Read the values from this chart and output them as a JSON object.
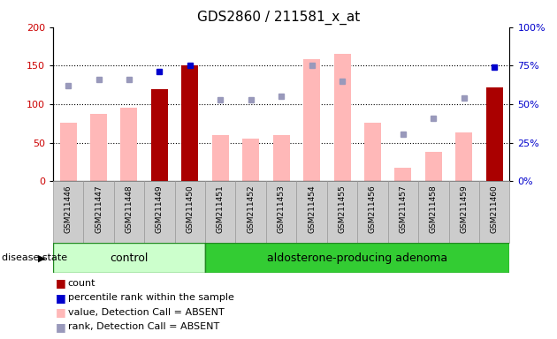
{
  "title": "GDS2860 / 211581_x_at",
  "samples": [
    "GSM211446",
    "GSM211447",
    "GSM211448",
    "GSM211449",
    "GSM211450",
    "GSM211451",
    "GSM211452",
    "GSM211453",
    "GSM211454",
    "GSM211455",
    "GSM211456",
    "GSM211457",
    "GSM211458",
    "GSM211459",
    "GSM211460"
  ],
  "count_values": [
    0,
    0,
    0,
    120,
    150,
    0,
    0,
    0,
    0,
    0,
    0,
    0,
    0,
    0,
    122
  ],
  "percentile_values": [
    0,
    0,
    0,
    143,
    150,
    0,
    0,
    0,
    0,
    0,
    0,
    0,
    0,
    0,
    148
  ],
  "pink_bar_values": [
    76,
    88,
    95,
    0,
    0,
    60,
    56,
    60,
    158,
    165,
    76,
    18,
    38,
    64,
    0
  ],
  "blue_dot_values": [
    124,
    132,
    132,
    0,
    0,
    106,
    106,
    110,
    150,
    130,
    0,
    61,
    82,
    108,
    0
  ],
  "control_count": 5,
  "adenoma_count": 10,
  "group_labels": [
    "control",
    "aldosterone-producing adenoma"
  ],
  "ylim_left": [
    0,
    200
  ],
  "ylim_right": [
    0,
    100
  ],
  "left_ticks": [
    0,
    50,
    100,
    150,
    200
  ],
  "right_ticks": [
    0,
    25,
    50,
    75,
    100
  ],
  "left_color": "#cc0000",
  "right_color": "#0000cc",
  "bar_color_red": "#aa0000",
  "bar_color_pink": "#ffb8b8",
  "dot_color_blue_dark": "#0000cc",
  "dot_color_blue_light": "#9999bb",
  "bg_color_control": "#ccffcc",
  "bg_color_adenoma": "#33cc33",
  "xticklabel_bg": "#cccccc",
  "disease_state_label": "disease state",
  "legend_items": [
    {
      "label": "count",
      "color": "#aa0000"
    },
    {
      "label": "percentile rank within the sample",
      "color": "#0000cc"
    },
    {
      "label": "value, Detection Call = ABSENT",
      "color": "#ffb8b8"
    },
    {
      "label": "rank, Detection Call = ABSENT",
      "color": "#9999bb"
    }
  ]
}
